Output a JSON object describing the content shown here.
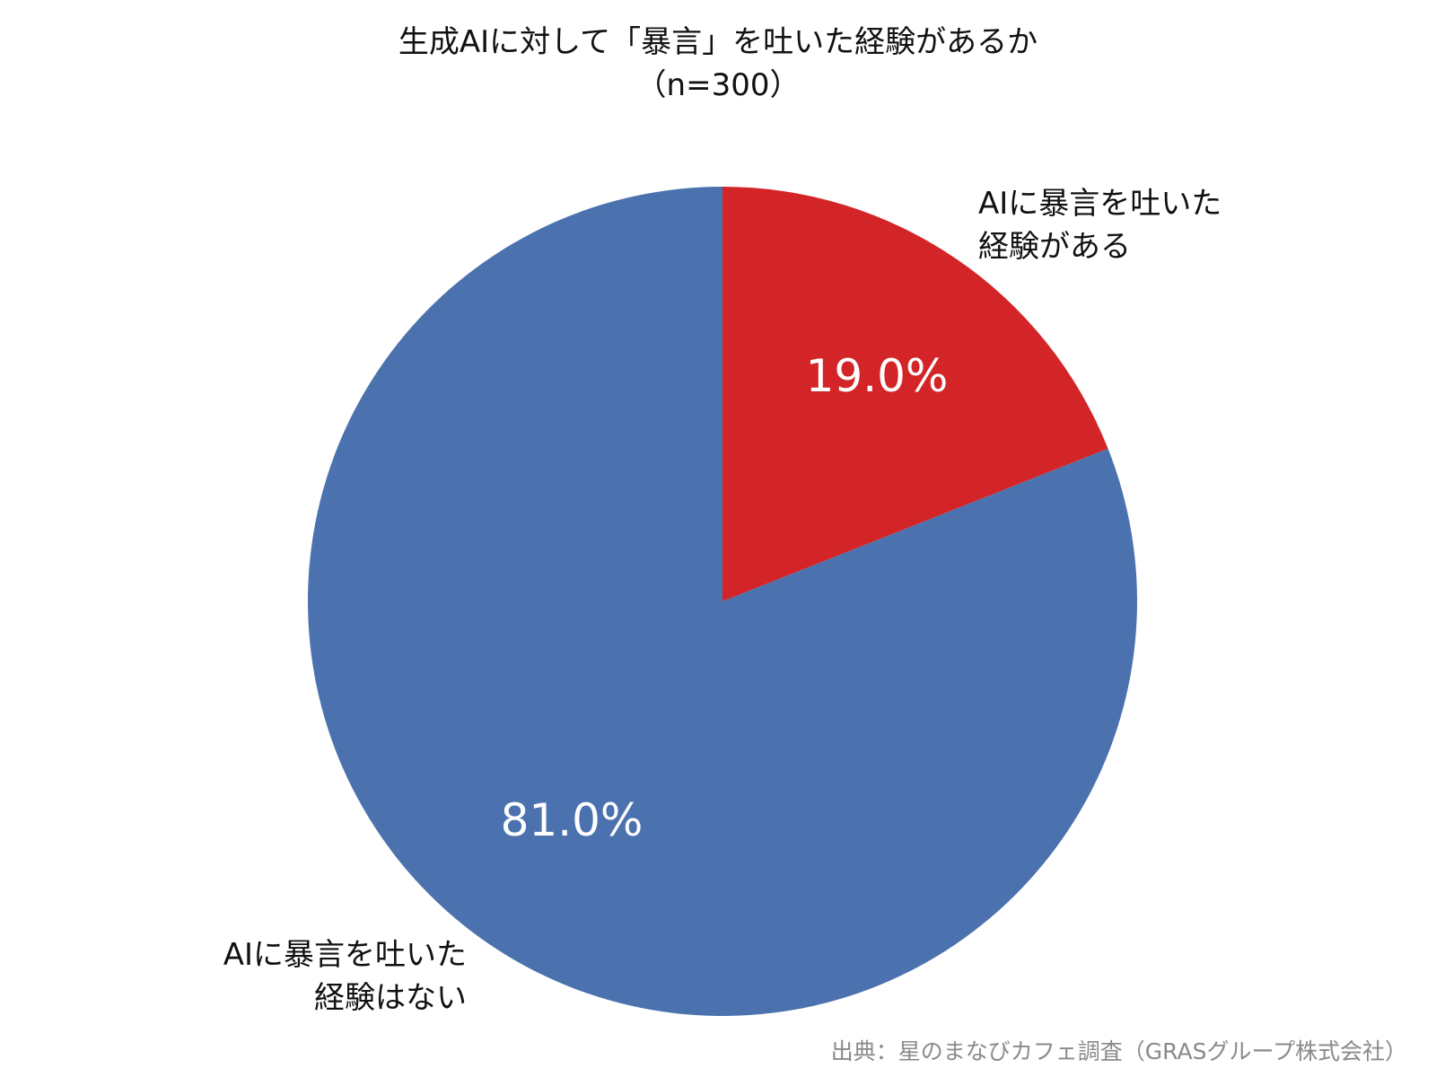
{
  "chart_data": {
    "type": "pie",
    "title": "生成AIに対して「暴言」を吐いた経験があるか",
    "subtitle": "（n=300）",
    "categories": [
      "AIに暴言を吐いた経験がある",
      "AIに暴言を吐いた経験はない"
    ],
    "label_lines": [
      [
        "AIに暴言を吐いた",
        "経験がある"
      ],
      [
        "AIに暴言を吐いた",
        "経験はない"
      ]
    ],
    "values": [
      19.0,
      81.0
    ],
    "value_labels": [
      "19.0%",
      "81.0%"
    ],
    "colors": [
      "#d32527",
      "#4b72ae"
    ],
    "start": "12 o'clock",
    "direction": "clockwise",
    "legend": "none",
    "source": "出典：星のまなびカフェ調査（GRASグループ株式会社）"
  }
}
